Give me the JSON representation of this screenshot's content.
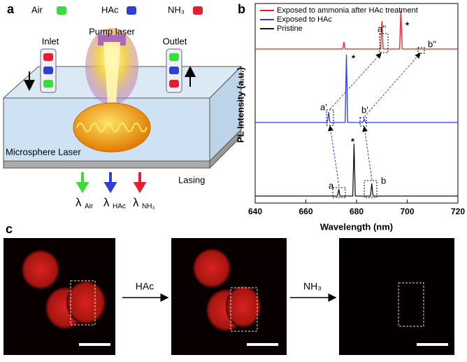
{
  "panel_labels": [
    "a",
    "b",
    "c"
  ],
  "panel_a": {
    "gases": [
      {
        "name": "Air",
        "color": "#3ddc3d"
      },
      {
        "name": "HAc",
        "color": "#2e3fd6"
      },
      {
        "name": "NH₃",
        "color": "#e0202f"
      }
    ],
    "inlet": "Inlet",
    "outlet": "Outlet",
    "pump": "Pump laser",
    "device": "Microsphere Laser",
    "lasing": "Lasing",
    "outputs": [
      {
        "symbol": "λ",
        "subscript": "Air"
      },
      {
        "symbol": "λ",
        "subscript": "HAc"
      },
      {
        "symbol": "λ",
        "subscript": "NH₃"
      }
    ]
  },
  "chart_data": {
    "type": "line",
    "xlabel": "Wavelength (nm)",
    "ylabel": "PL Intensity (a.u.)",
    "x": [
      640,
      668.5,
      669,
      669.5,
      672.5,
      673,
      673.5,
      674.5,
      675,
      675.5,
      676,
      676.5,
      678.5,
      679,
      679.5,
      682.5,
      683,
      683.5,
      685.5,
      686,
      686.5,
      689.5,
      690,
      690.5,
      697,
      697.5,
      698,
      720
    ],
    "xlim": [
      640,
      720
    ],
    "xticks": [
      640,
      660,
      680,
      700,
      720
    ],
    "ylim": [
      0,
      100
    ],
    "series": [
      {
        "name": "Exposed to ammonia after HAc treatment",
        "color": "#e8222c",
        "values": [
          77.2,
          77.2,
          77.2,
          77.2,
          77.2,
          77.2,
          77.2,
          77.2,
          80.7,
          77.2,
          77.2,
          77.2,
          77.2,
          77.2,
          77.2,
          77.2,
          77.2,
          77.2,
          77.2,
          77.2,
          77.2,
          77.2,
          91.2,
          77.2,
          77.2,
          96.5,
          77.2,
          77.2
        ]
      },
      {
        "name": "Exposed to HAc",
        "color": "#2a3ee0",
        "values": [
          40.4,
          40.4,
          45.6,
          40.4,
          40.4,
          40.4,
          40.4,
          40.4,
          40.4,
          40.4,
          74.4,
          40.4,
          40.4,
          40.4,
          40.4,
          40.4,
          42.1,
          40.4,
          40.4,
          40.4,
          40.4,
          40.4,
          40.4,
          40.4,
          40.4,
          40.4,
          40.4,
          40.4
        ]
      },
      {
        "name": "Pristine",
        "color": "#111111",
        "values": [
          3.5,
          3.5,
          3.5,
          3.5,
          3.5,
          7,
          3.5,
          3.5,
          3.5,
          3.5,
          3.5,
          3.5,
          3.5,
          29.8,
          3.5,
          3.5,
          3.5,
          3.5,
          3.5,
          9.8,
          3.5,
          3.5,
          3.5,
          3.5,
          3.5,
          3.5,
          3.5,
          3.5
        ]
      }
    ],
    "annotations": [
      "a''",
      "b''",
      "a'",
      "b'",
      "a",
      "b",
      "*",
      "*",
      "*"
    ]
  },
  "panel_c": {
    "steps": [
      "HAc",
      "NH₃"
    ]
  }
}
